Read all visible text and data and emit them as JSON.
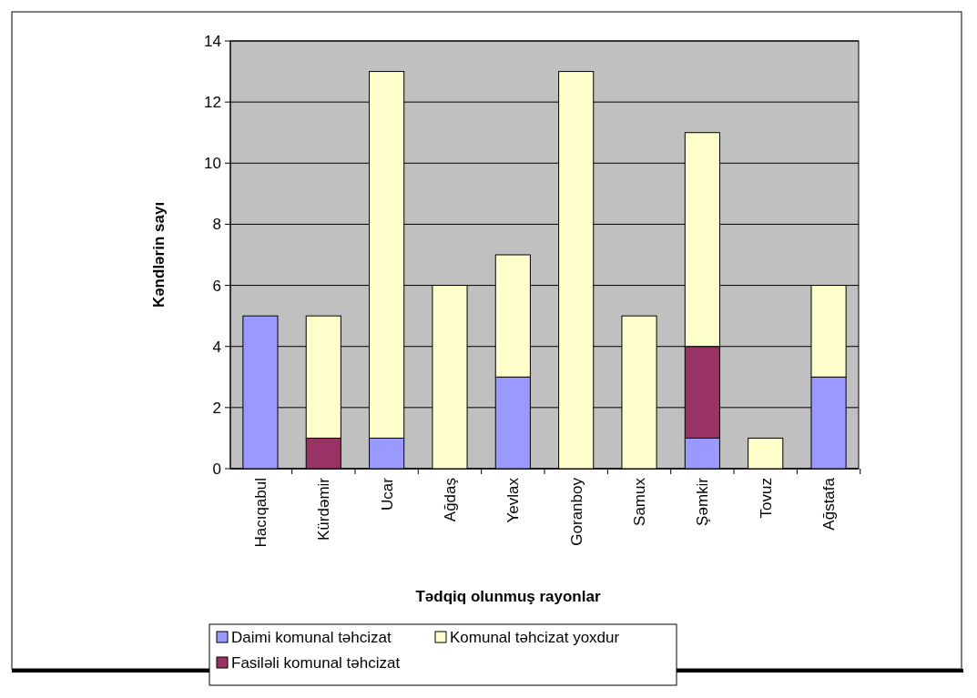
{
  "chart_data": {
    "type": "bar",
    "stacked": true,
    "xlabel": "Tədqiq olunmuş rayonlar",
    "ylabel": "Kəndlərin sayı",
    "categories": [
      "Hacıqabul",
      "Kürdəmir",
      "Ucar",
      "Ağdaş",
      "Yevlax",
      "Goranboy",
      "Samux",
      "Şəmkir",
      "Tovuz",
      "Ağstafa"
    ],
    "series": [
      {
        "name": "Daimi komunal təhcizat",
        "color": "#9999ff",
        "values": [
          5,
          0,
          1,
          0,
          3,
          0,
          0,
          1,
          0,
          3
        ]
      },
      {
        "name": "Fasiləli komunal təhcizat",
        "color": "#993366",
        "values": [
          0,
          1,
          0,
          0,
          0,
          0,
          0,
          3,
          0,
          0
        ]
      },
      {
        "name": "Komunal təhcizat yoxdur",
        "color": "#ffffcc",
        "values": [
          0,
          4,
          12,
          6,
          4,
          13,
          5,
          7,
          1,
          3
        ]
      }
    ],
    "ylim": [
      0,
      14
    ],
    "yticks": [
      0,
      2,
      4,
      6,
      8,
      10,
      12,
      14
    ],
    "grid": "y",
    "legend": "bottom"
  }
}
